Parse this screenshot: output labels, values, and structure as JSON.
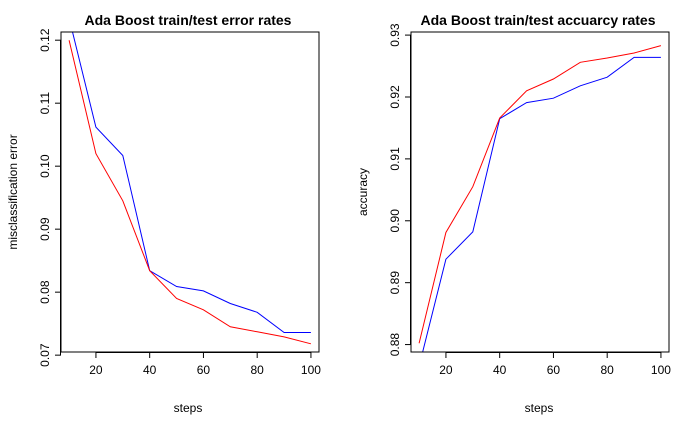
{
  "chart_data": [
    {
      "type": "line",
      "title": "Ada Boost train/test error rates",
      "xlabel": "steps",
      "ylabel": "misclassification error",
      "xlim": [
        7,
        103
      ],
      "ylim": [
        0.0705,
        0.1213
      ],
      "xticks": [
        20,
        40,
        60,
        80,
        100
      ],
      "yticks": [
        0.07,
        0.08,
        0.09,
        0.1,
        0.11,
        0.12
      ],
      "ytick_labels": [
        "0.07",
        "0.08",
        "0.09",
        "0.10",
        "0.11",
        "0.12"
      ],
      "grid": false,
      "legend": "none",
      "x": [
        10,
        20,
        30,
        40,
        50,
        60,
        70,
        80,
        90,
        100
      ],
      "series": [
        {
          "color": "#0000ff",
          "values": [
            0.1235,
            0.1062,
            0.1017,
            0.0834,
            0.0809,
            0.0802,
            0.0782,
            0.0768,
            0.0736,
            0.0736
          ]
        },
        {
          "color": "#ff0000",
          "values": [
            0.12,
            0.102,
            0.0945,
            0.0834,
            0.079,
            0.0772,
            0.0745,
            0.0737,
            0.0729,
            0.0718
          ]
        }
      ]
    },
    {
      "type": "line",
      "title": "Ada Boost train/test accuarcy rates",
      "xlabel": "steps",
      "ylabel": "accuracy",
      "xlim": [
        7,
        103
      ],
      "ylim": [
        0.8788,
        0.9305
      ],
      "xticks": [
        20,
        40,
        60,
        80,
        100
      ],
      "yticks": [
        0.88,
        0.89,
        0.9,
        0.91,
        0.92,
        0.93
      ],
      "ytick_labels": [
        "0.88",
        "0.89",
        "0.90",
        "0.91",
        "0.92",
        "0.93"
      ],
      "grid": false,
      "legend": "none",
      "x": [
        10,
        20,
        30,
        40,
        50,
        60,
        70,
        80,
        90,
        100
      ],
      "series": [
        {
          "color": "#0000ff",
          "values": [
            0.8765,
            0.8938,
            0.8982,
            0.9165,
            0.9191,
            0.9198,
            0.9218,
            0.9232,
            0.9264,
            0.9264
          ]
        },
        {
          "color": "#ff0000",
          "values": [
            0.8802,
            0.8981,
            0.9055,
            0.9166,
            0.921,
            0.9229,
            0.9256,
            0.9263,
            0.9271,
            0.9283
          ]
        }
      ]
    }
  ]
}
